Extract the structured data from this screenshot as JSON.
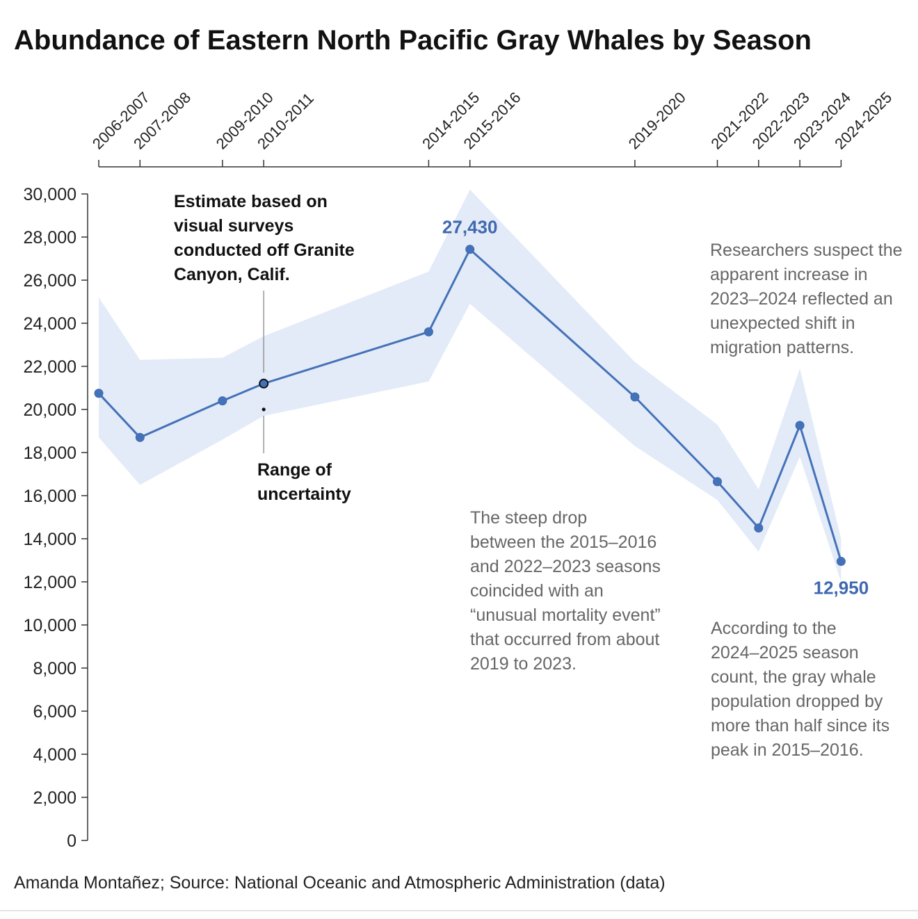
{
  "chart_data": {
    "type": "line",
    "title": "Abundance of Eastern North Pacific Gray Whales by Season",
    "categories": [
      "2006-2007",
      "2007-2008",
      "2009-2010",
      "2010-2011",
      "2014-2015",
      "2015-2016",
      "2019-2020",
      "2021-2022",
      "2022-2023",
      "2023-2024",
      "2024-2025"
    ],
    "start_years": [
      2006,
      2007,
      2009,
      2010,
      2014,
      2015,
      2019,
      2021,
      2022,
      2023,
      2024
    ],
    "series": [
      {
        "values": [
          20750,
          18700,
          20400,
          21200,
          23600,
          27430,
          20580,
          16650,
          14500,
          19260,
          12950
        ]
      }
    ],
    "uncertainty_low": [
      18700,
      16500,
      18600,
      19700,
      21300,
      24900,
      18300,
      15800,
      13400,
      17800,
      12000
    ],
    "uncertainty_high": [
      25200,
      22300,
      22400,
      23400,
      26400,
      30200,
      22200,
      19300,
      16300,
      21900,
      14000
    ],
    "y_ticks": [
      "0",
      "2,000",
      "4,000",
      "6,000",
      "8,000",
      "10,000",
      "12,000",
      "14,000",
      "16,000",
      "18,000",
      "20,000",
      "22,000",
      "24,000",
      "26,000",
      "28,000",
      "30,000"
    ],
    "ylim": [
      0,
      30000
    ],
    "grid": false,
    "colors": {
      "line": "#4472b8",
      "band": "#e3ebf8",
      "point_stroke": "#3f68b0"
    },
    "data_labels": [
      {
        "index": 5,
        "text": "27,430"
      },
      {
        "index": 10,
        "text": "12,950"
      }
    ],
    "annotations": {
      "estimate": [
        "Estimate based on",
        "visual surveys",
        "conducted off Granite",
        "Canyon, Calif."
      ],
      "range": [
        "Range of",
        "uncertainty"
      ],
      "drop": [
        "The steep drop",
        "between the 2015–2016",
        "and 2022–2023 seasons",
        "coincided with an",
        "“unusual mortality event”",
        "that occurred from about",
        "2019 to 2023."
      ],
      "researchers": [
        "Researchers suspect the",
        "apparent increase in",
        "2023–2024 reflected an",
        "unexpected shift in",
        "migration patterns."
      ],
      "according": [
        "According to the",
        "2024–2025 season",
        "count, the gray whale",
        "population dropped by",
        "more than half since its",
        "peak in 2015–2016."
      ]
    },
    "source": "Amanda Montañez; Source: National Oceanic and Atmospheric Administration (data)"
  }
}
